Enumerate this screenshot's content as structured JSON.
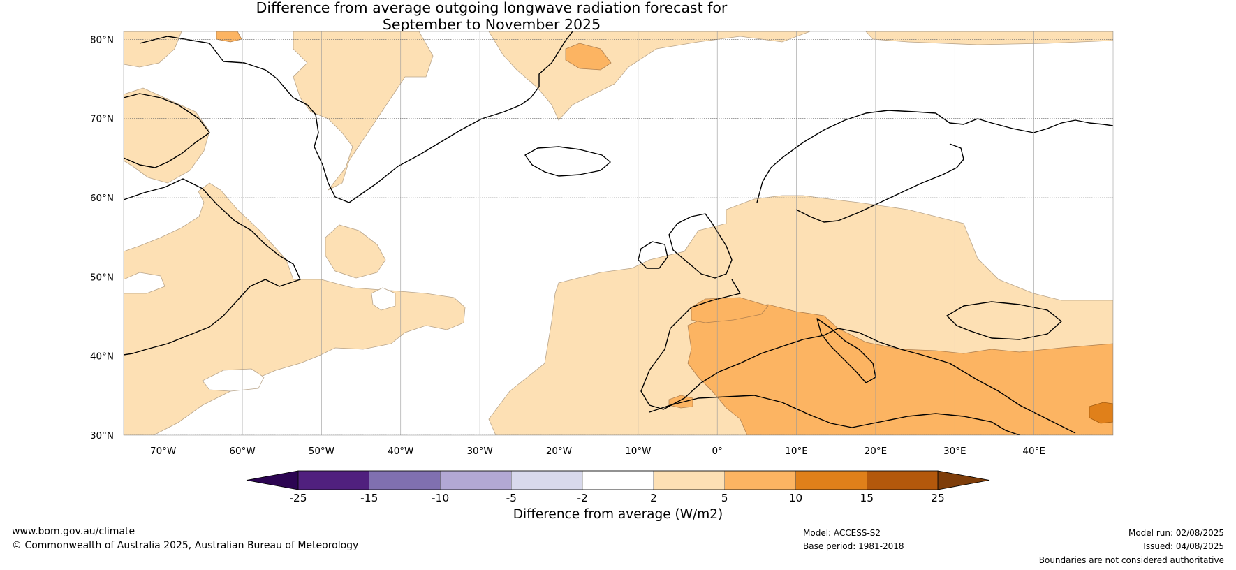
{
  "title_line1": "Difference from average outgoing longwave radiation forecast for",
  "title_line2": "September to November 2025",
  "map": {
    "lon_min": -75,
    "lon_max": 50,
    "lat_min": 30,
    "lat_max": 81,
    "lat_ticks": [
      {
        "value": 80,
        "label": "80°N"
      },
      {
        "value": 70,
        "label": "70°N"
      },
      {
        "value": 60,
        "label": "60°N"
      },
      {
        "value": 50,
        "label": "50°N"
      },
      {
        "value": 40,
        "label": "40°N"
      },
      {
        "value": 30,
        "label": "30°N"
      }
    ],
    "lon_ticks": [
      {
        "value": -70,
        "label": "70°W"
      },
      {
        "value": -60,
        "label": "60°W"
      },
      {
        "value": -50,
        "label": "50°W"
      },
      {
        "value": -40,
        "label": "40°W"
      },
      {
        "value": -30,
        "label": "30°W"
      },
      {
        "value": -20,
        "label": "20°W"
      },
      {
        "value": -10,
        "label": "10°W"
      },
      {
        "value": 0,
        "label": "0°"
      },
      {
        "value": 10,
        "label": "10°E"
      },
      {
        "value": 20,
        "label": "20°E"
      },
      {
        "value": 30,
        "label": "30°E"
      },
      {
        "value": 40,
        "label": "40°E"
      }
    ],
    "gridlines": true
  },
  "colorbar": {
    "label": "Difference from average (W/m2)",
    "boundaries": [
      -25,
      -15,
      -10,
      -5,
      -2,
      2,
      5,
      10,
      15,
      25
    ],
    "tick_labels": [
      "-25",
      "-15",
      "-10",
      "-5",
      "-2",
      "2",
      "5",
      "10",
      "15",
      "25"
    ],
    "colors": [
      "#50207e",
      "#8070b0",
      "#b2a8d4",
      "#d8d9ec",
      "#ffffff",
      "#fde0b4",
      "#fcb462",
      "#e0801a",
      "#b3580c"
    ],
    "under_color": "#2c0552",
    "over_color": "#7e3d0a"
  },
  "footer": {
    "website": "www.bom.gov.au/climate",
    "copyright": "© Commonwealth of Australia 2025, Australian Bureau of Meteorology",
    "model": "Model: ACCESS-S2",
    "base_period": "Base period: 1981-2018",
    "model_run": "Model run: 02/08/2025",
    "issued": "Issued: 04/08/2025",
    "disclaimer": "Boundaries are not considered authoritative"
  }
}
